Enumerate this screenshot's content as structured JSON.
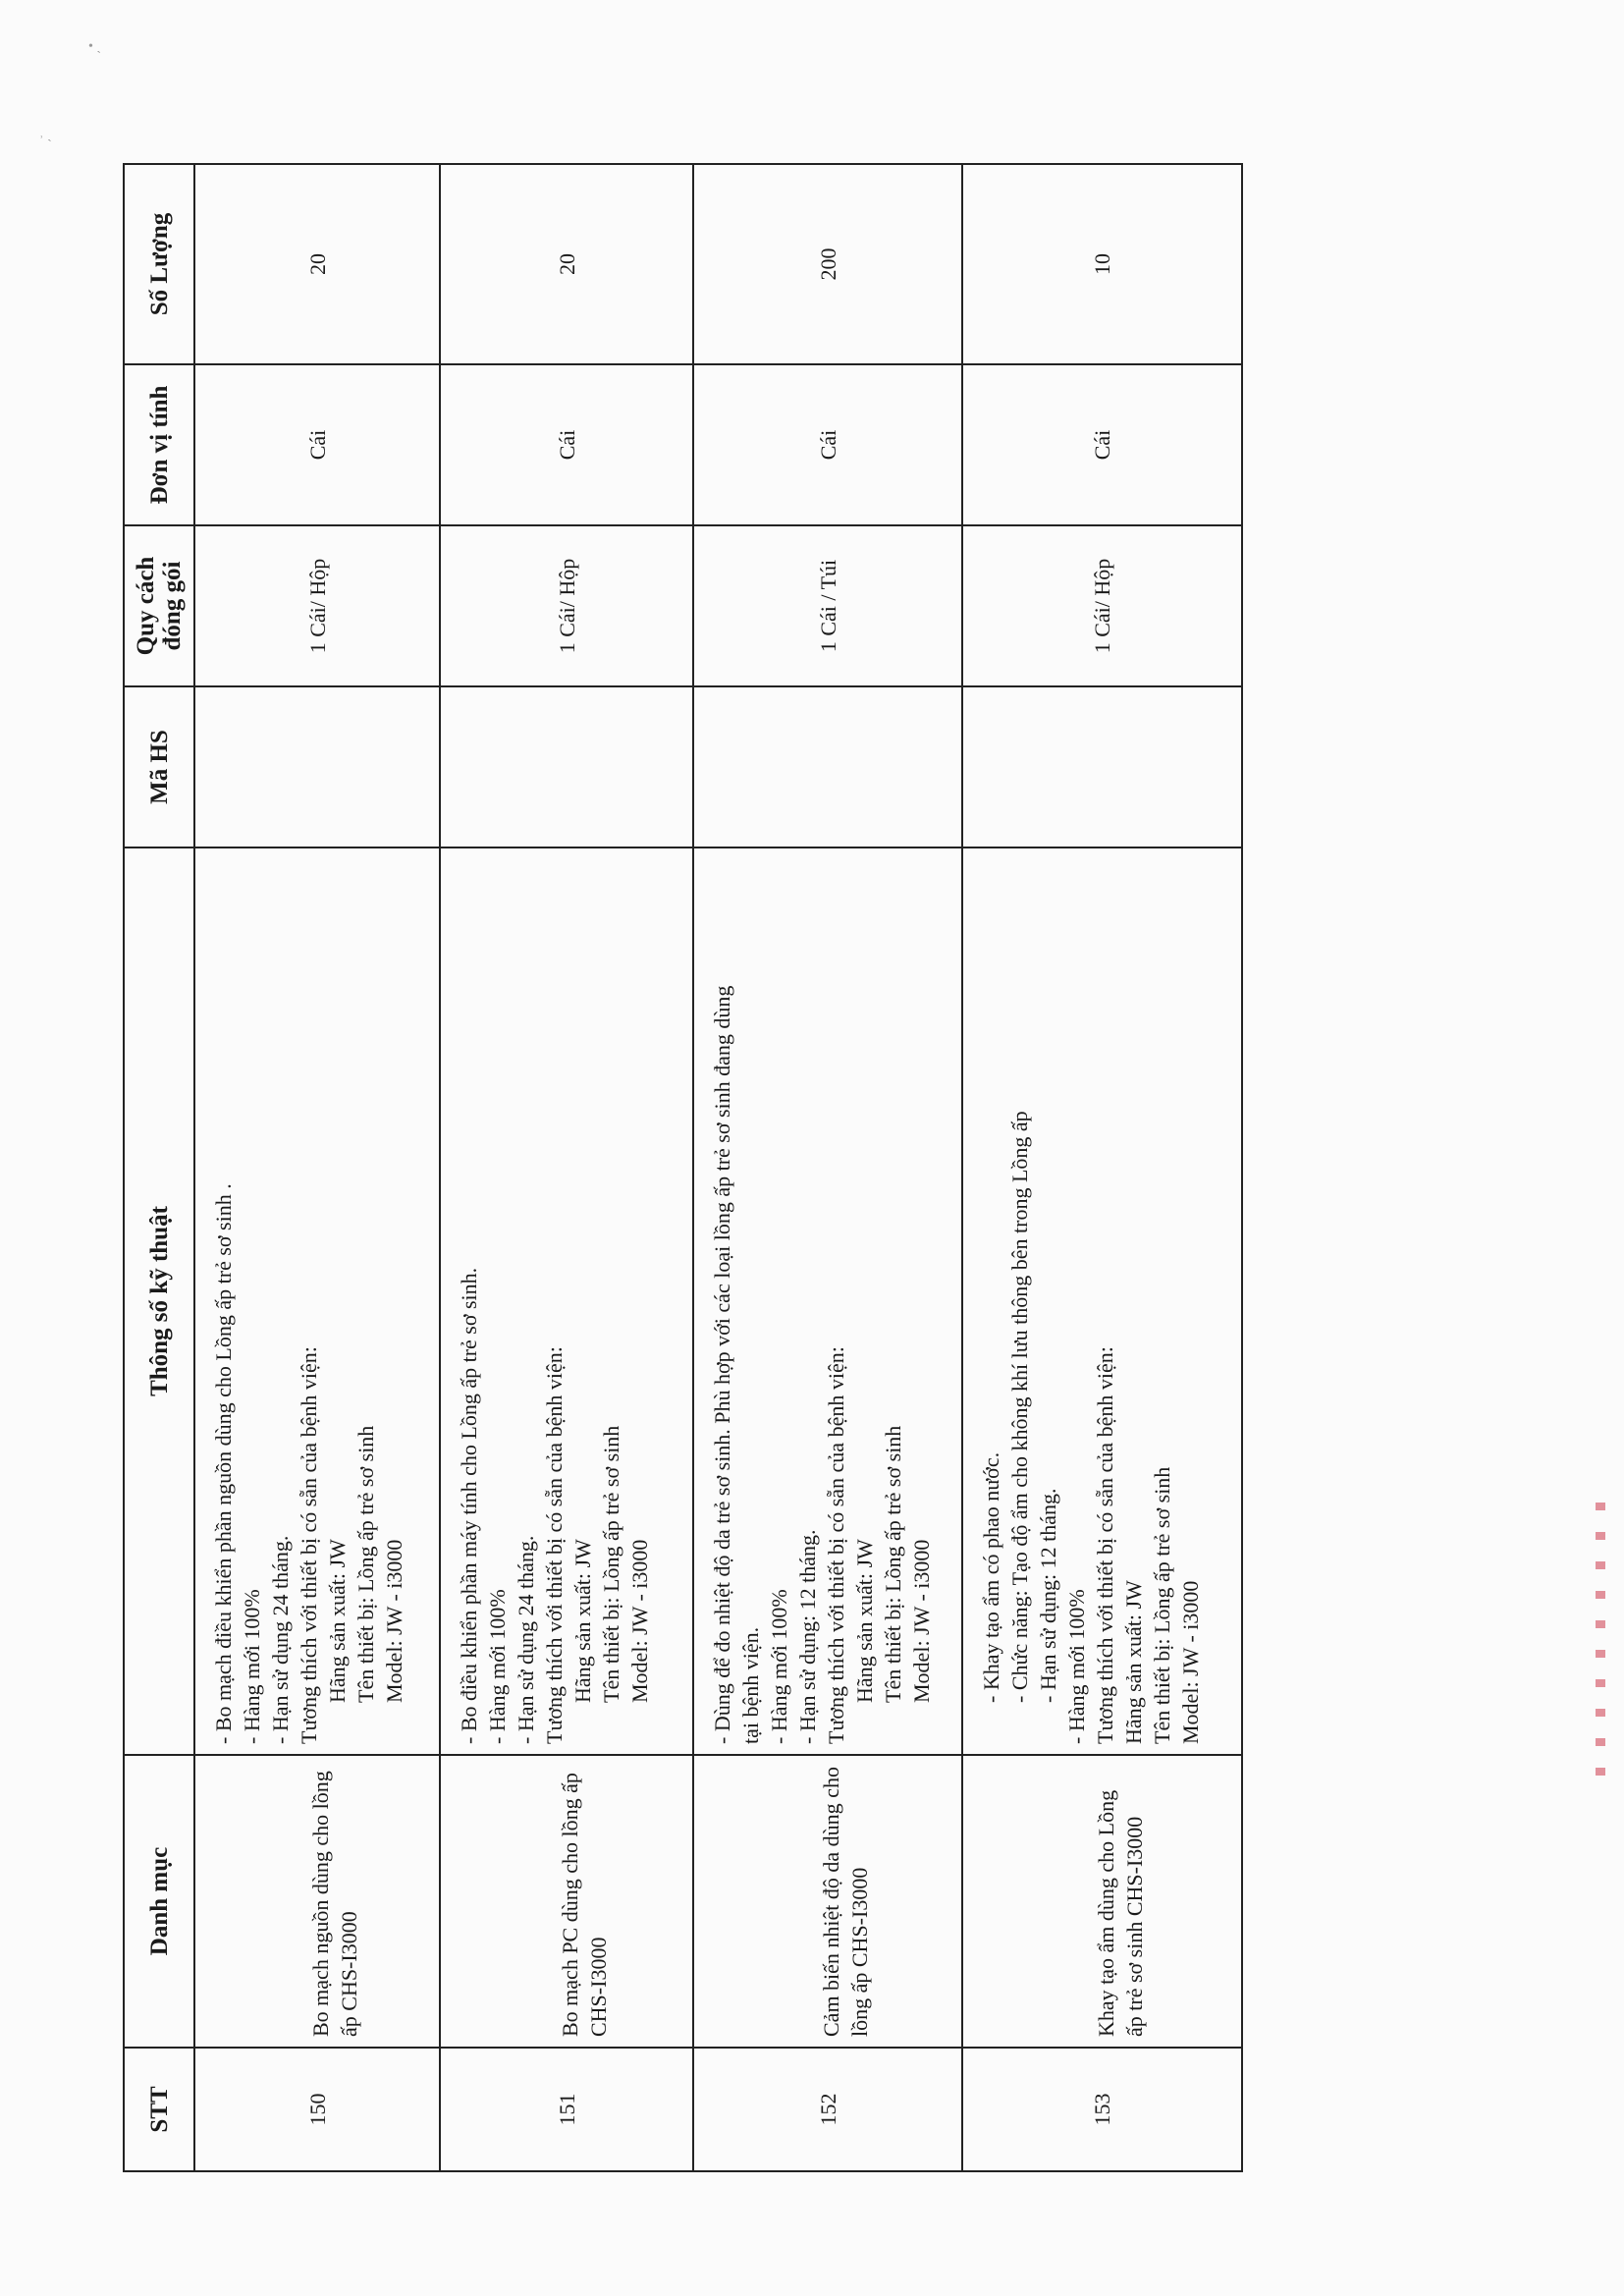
{
  "table": {
    "headers": [
      "STT",
      "Danh mục",
      "Thông số kỹ thuật",
      "Mã HS",
      "Quy cách đóng gói",
      "Đơn vị tính",
      "Số Lượng"
    ],
    "rows": [
      {
        "stt": "150",
        "danh_muc": "Bo mạch nguồn dùng cho lồng ấp CHS-I3000",
        "spec": [
          {
            "text": "- Bo mạch điều khiển phần nguồn dùng cho Lồng ấp trẻ sơ sinh .",
            "indent": false
          },
          {
            "text": "- Hàng mới 100%",
            "indent": false
          },
          {
            "text": "- Hạn sử dụng 24 tháng.",
            "indent": false
          },
          {
            "text": "Tương thích với thiết bị có sẵn của bệnh viện:",
            "indent": false
          },
          {
            "text": "Hãng sản xuất: JW",
            "indent": true
          },
          {
            "text": "Tên thiết bị: Lồng ấp trẻ sơ sinh",
            "indent": true
          },
          {
            "text": "Model: JW - i3000",
            "indent": true
          }
        ],
        "ma_hs": "",
        "quy_cach": "1 Cái/ Hộp",
        "don_vi": "Cái",
        "so_luong": "20"
      },
      {
        "stt": "151",
        "danh_muc": "Bo mạch PC dùng cho lồng ấp CHS-I3000",
        "spec": [
          {
            "text": "- Bo điều khiển phần máy tính cho Lồng ấp trẻ sơ sinh.",
            "indent": false
          },
          {
            "text": "- Hàng mới 100%",
            "indent": false
          },
          {
            "text": "- Hạn sử dụng 24 tháng.",
            "indent": false
          },
          {
            "text": "Tương thích với thiết bị có sẵn của bệnh viện:",
            "indent": false
          },
          {
            "text": "Hãng sản xuất: JW",
            "indent": true
          },
          {
            "text": "Tên thiết bị: Lồng ấp trẻ sơ sinh",
            "indent": true
          },
          {
            "text": "Model: JW - i3000",
            "indent": true
          }
        ],
        "ma_hs": "",
        "quy_cach": "1 Cái/ Hộp",
        "don_vi": "Cái",
        "so_luong": "20"
      },
      {
        "stt": "152",
        "danh_muc": "Cảm biến nhiệt độ da dùng cho lồng ấp CHS-I3000",
        "spec": [
          {
            "text": "- Dùng để đo nhiệt độ da trẻ sơ sinh. Phù hợp với các loại lồng ấp trẻ sơ sinh đang dùng",
            "indent": false
          },
          {
            "text": "tại bệnh viện.",
            "indent": false
          },
          {
            "text": "- Hàng mới 100%",
            "indent": false
          },
          {
            "text": "- Hạn sử dụng: 12 tháng.",
            "indent": false
          },
          {
            "text": "Tương thích với thiết bị có sẵn của bệnh viện:",
            "indent": false
          },
          {
            "text": "Hãng sản xuất: JW",
            "indent": true
          },
          {
            "text": "Tên thiết bị: Lồng ấp trẻ sơ sinh",
            "indent": true
          },
          {
            "text": "Model: JW - i3000",
            "indent": true
          }
        ],
        "ma_hs": "",
        "quy_cach": "1 Cái / Túi",
        "don_vi": "Cái",
        "so_luong": "200"
      },
      {
        "stt": "153",
        "danh_muc": "Khay tạo ẩm dùng cho Lồng ấp trẻ sơ sinh CHS-I3000",
        "spec": [
          {
            "text": "- Khay tạo ẩm có phao nước.",
            "indent": true
          },
          {
            "text": "- Chức năng: Tạo độ ẩm cho không khí lưu thông bên trong Lồng ấp",
            "indent": true
          },
          {
            "text": "- Hạn sử dụng: 12 tháng.",
            "indent": true
          },
          {
            "text": "- Hàng mới 100%",
            "indent": false
          },
          {
            "text": "Tương thích với thiết bị có sẵn của bệnh viện:",
            "indent": false
          },
          {
            "text": "Hãng sản xuất: JW",
            "indent": false
          },
          {
            "text": "Tên thiết bị: Lồng ấp trẻ sơ sinh",
            "indent": false
          },
          {
            "text": "Model: JW - i3000",
            "indent": false
          }
        ],
        "ma_hs": "",
        "quy_cach": "1 Cái/ Hộp",
        "don_vi": "Cái",
        "so_luong": "10"
      }
    ]
  }
}
